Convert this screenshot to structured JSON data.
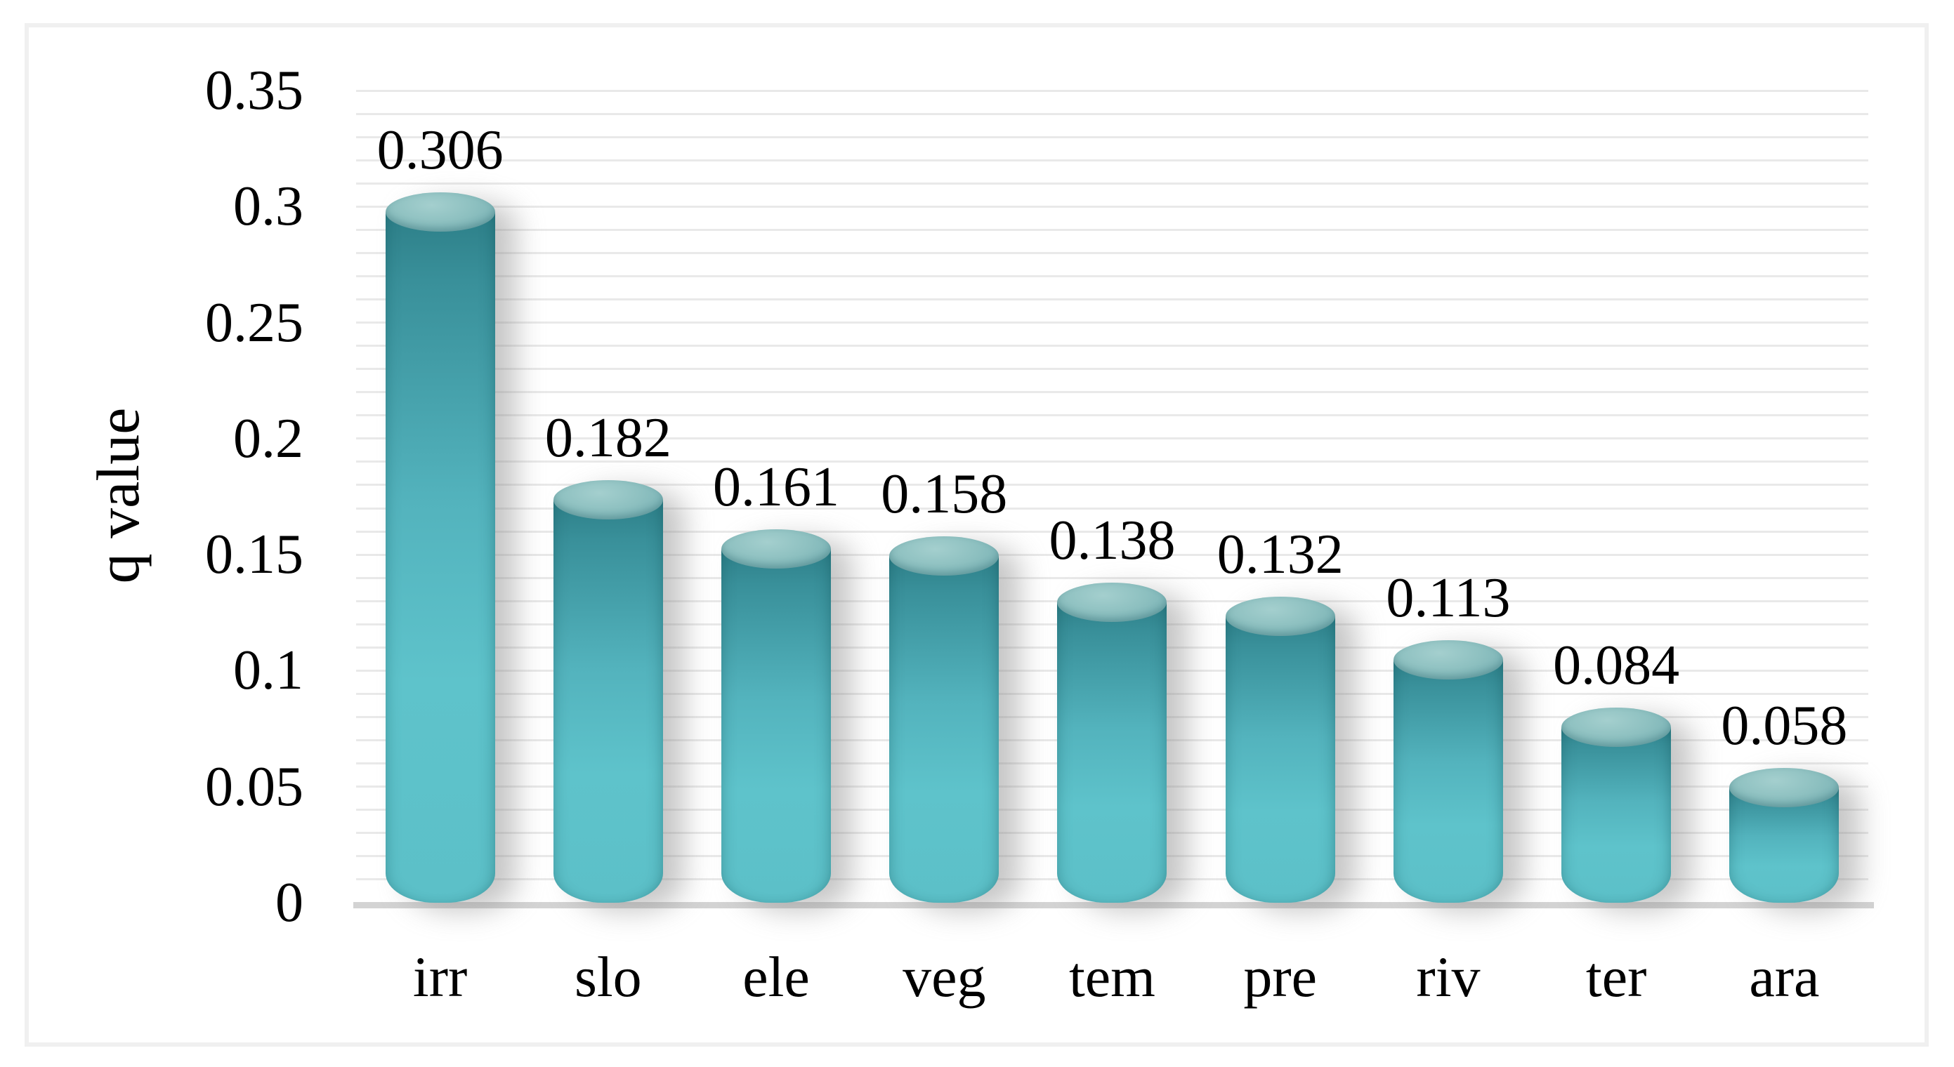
{
  "chart_data": {
    "type": "bar",
    "subtype": "cylinder-3d",
    "title": "",
    "xlabel": "",
    "ylabel": "q value",
    "categories": [
      "irr",
      "slo",
      "ele",
      "veg",
      "tem",
      "pre",
      "riv",
      "ter",
      "ara"
    ],
    "values": [
      0.306,
      0.182,
      0.161,
      0.158,
      0.138,
      0.132,
      0.113,
      0.084,
      0.058
    ],
    "data_labels": [
      "0.306",
      "0.182",
      "0.161",
      "0.158",
      "0.138",
      "0.132",
      "0.113",
      "0.084",
      "0.058"
    ],
    "ylim": [
      0,
      0.35
    ],
    "yticks": [
      {
        "v": 0.0,
        "label": "0"
      },
      {
        "v": 0.05,
        "label": "0.05"
      },
      {
        "v": 0.1,
        "label": "0.1"
      },
      {
        "v": 0.15,
        "label": "0.15"
      },
      {
        "v": 0.2,
        "label": "0.2"
      },
      {
        "v": 0.25,
        "label": "0.25"
      },
      {
        "v": 0.3,
        "label": "0.3"
      },
      {
        "v": 0.35,
        "label": "0.35"
      }
    ],
    "y_major_unit": 0.05,
    "y_minor_unit": 0.01,
    "gridlines": "minor-horizontal",
    "legend": "none",
    "colors": {
      "bar_body_top": "#2d7f88",
      "bar_body_upper": "#39909a",
      "bar_body_mid": "#53b3bd",
      "bar_body_low": "#5ec3cb",
      "bar_body_end": "#5cc0c8",
      "bar_rim_highlight": "#a4cfce",
      "bar_rim": "#8dc0c0",
      "bar_rim_mid": "#7bb3b6",
      "bar_rim_low": "#6ea7ac",
      "gridline": "#e9e9e9",
      "axis_baseline": "#d3d3d3",
      "frame_border": "#f0f0f0",
      "text": "#000000"
    }
  }
}
